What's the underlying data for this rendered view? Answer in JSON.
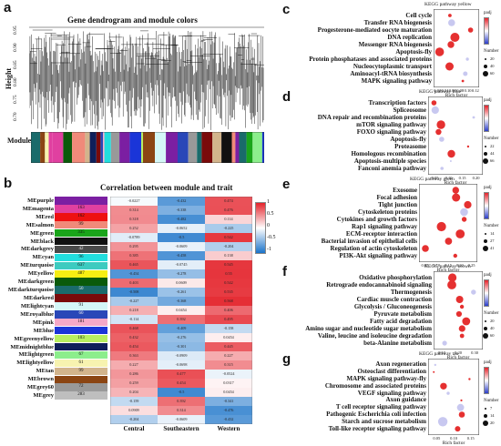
{
  "panels": {
    "a": {
      "letter": "a",
      "title": "Gene dendrogram and module colors",
      "ylabel": "Height",
      "module_colors_label": "Module colors",
      "yticks": [
        "0.95",
        "0.90",
        "0.85",
        "0.80",
        "0.75",
        "0.70"
      ]
    },
    "b": {
      "letter": "b",
      "title": "Correlation between module and trait",
      "columns": [
        "Central",
        "Southeastern",
        "Western"
      ],
      "legend_ticks": [
        "1",
        "0.5",
        "0",
        "-0.5",
        "-1"
      ]
    },
    "c": {
      "letter": "c",
      "title": "KEGG pathway yellow",
      "xlabel": "Rich factor",
      "terms": [
        "Cell cycle",
        "Transfer RNA biogenesis",
        "Progesterone-mediated oocyte maturation",
        "DNA replication",
        "Messenger RNA biogenesis",
        "Apoptosis-fly",
        "Protein phosphatases and associated proteins",
        "Nucleocytoplasmic transport",
        "Aminoacyl-tRNA biosynthesis",
        "MAPK signaling pathway"
      ],
      "xticks": [
        "0.02",
        "0.04",
        "0.06",
        "0.08",
        "0.10",
        "0.12"
      ]
    },
    "d": {
      "letter": "d",
      "title": "KEGG pathway blue",
      "xlabel": "Rich factor",
      "terms": [
        "Transcription factors",
        "Spliceosome",
        "DNA repair and recombination proteins",
        "mTOR signaling pathway",
        "FOXO signaling pathway",
        "Apoptosis-fly",
        "Proteasome",
        "Homologous recombination",
        "Apoptosis-multiple species",
        "Fanconi anemia pathway"
      ],
      "xticks": [
        "0.05",
        "0.10",
        "0.15",
        "0.20"
      ]
    },
    "e": {
      "letter": "e",
      "title": "KEGG pathway green",
      "xlabel": "Rich factor",
      "terms": [
        "Exosome",
        "Focal adhesion",
        "Tight junction",
        "Cytoskeleton proteins",
        "Cytokines and growth factors",
        "Rap1 signaling pathway",
        "ECM-receptor interaction",
        "Bacterial invasion of epithelial cells",
        "Regulation of actin cytoskeleton",
        "PI3K-Akt signaling pathway"
      ],
      "xticks": [
        "0.05",
        "0.10",
        "0.15",
        "0.20",
        "0.25"
      ]
    },
    "f": {
      "letter": "f",
      "title": "KEGG pathway brown",
      "xlabel": "Rich factor",
      "terms": [
        "Oxidative phosphorylation",
        "Retrograde endocannabinoid signaling",
        "Thermogenesis",
        "Cardiac muscle contraction",
        "Glycolysis / Gluconeogenesis",
        "Pyruvate metabolism",
        "Fatty acid degradation",
        "Amino sugar and nucleotide sugar metabolism",
        "Valine, leucine and isoleucine degradation",
        "beta-Alanine metabolism"
      ],
      "xticks": [
        "0.10",
        "0.20",
        "0.30"
      ]
    },
    "g": {
      "letter": "g",
      "title": "KEGG pathway tan",
      "xlabel": "Rich factor",
      "terms": [
        "Axon regeneration",
        "Osteoclast differentiation",
        "MAPK signaling pathway-fly",
        "Chromosome and associated proteins",
        "VEGF signaling pathway",
        "Axon guidance",
        "T cell receptor signaling pathway",
        "Pathogenic Escherichia coli infection",
        "Starch and sucrose metabolism",
        "Toll-like receptor signaling pathway"
      ],
      "xticks": [
        "0.05",
        "0.10",
        "0.15"
      ]
    }
  },
  "kegg_legend": {
    "padj_label": "padj",
    "number_label": "Number",
    "c": [
      "20",
      "40",
      "60"
    ],
    "d": [
      "22",
      "44",
      "66"
    ],
    "e": [
      "14",
      "27",
      "41"
    ],
    "f": [
      "20",
      "40",
      "60"
    ],
    "g": [
      "7",
      "14",
      "20"
    ]
  },
  "modules": [
    {
      "name": "MEpurple",
      "color": "#7b1fa2",
      "count": ""
    },
    {
      "name": "MEmagenta",
      "color": "#e040a0",
      "count": "163"
    },
    {
      "name": "MEred",
      "color": "#ee1111",
      "count": "162"
    },
    {
      "name": "MEsalmon",
      "color": "#f08a7a",
      "count": "99"
    },
    {
      "name": "MEgreen",
      "color": "#1aa51a",
      "count": "335"
    },
    {
      "name": "MEblack",
      "color": "#111111",
      "count": ""
    },
    {
      "name": "MEdarkgrey",
      "color": "#4a4a4a",
      "count": "42"
    },
    {
      "name": "MEcyan",
      "color": "#22dddd",
      "count": "96"
    },
    {
      "name": "MEturquoise",
      "color": "#3ccbc0",
      "count": "637"
    },
    {
      "name": "MEyellow",
      "color": "#f7ee13",
      "count": "487"
    },
    {
      "name": "MEdarkgreen",
      "color": "#0a5a0a",
      "count": ""
    },
    {
      "name": "MEdarkturquoise",
      "color": "#1a6b6b",
      "count": "50"
    },
    {
      "name": "MEdarkred",
      "color": "#7a0a0a",
      "count": ""
    },
    {
      "name": "MElightcyan",
      "color": "#d4f7f7",
      "count": "91"
    },
    {
      "name": "MEroyalblue",
      "color": "#2947b8",
      "count": "60"
    },
    {
      "name": "MEpink",
      "color": "#f5a8c8",
      "count": "181"
    },
    {
      "name": "MEblue",
      "color": "#1a35d8",
      "count": ""
    },
    {
      "name": "MEgreenyellow",
      "color": "#b8f060",
      "count": "103"
    },
    {
      "name": "MEmidnightblue",
      "color": "#0f1f5a",
      "count": ""
    },
    {
      "name": "MElightgreen",
      "color": "#8cee8c",
      "count": "67"
    },
    {
      "name": "MElightyellow",
      "color": "#f7f3b0",
      "count": "61"
    },
    {
      "name": "MEtan",
      "color": "#d2b48c",
      "count": "99"
    },
    {
      "name": "MEbrown",
      "color": "#8b4513",
      "count": ""
    },
    {
      "name": "MEgrey60",
      "color": "#999999",
      "count": "72"
    },
    {
      "name": "MEgrey",
      "color": "#bebebe",
      "count": "283"
    }
  ],
  "heatmap": [
    [
      -0.0227,
      -0.432,
      0.474
    ],
    [
      0.314,
      -0.338,
      0.476
    ],
    [
      0.318,
      -0.482,
      0.114
    ],
    [
      0.252,
      -0.0652,
      -0.225
    ],
    [
      -0.0789,
      -0.5,
      0.542
    ],
    [
      0.295,
      -0.0609,
      -0.204
    ],
    [
      0.385,
      -0.458,
      0.138
    ],
    [
      0.465,
      -0.0745,
      0.545
    ],
    [
      -0.454,
      -0.278,
      0.55
    ],
    [
      0.403,
      0.0609,
      0.542
    ],
    [
      -0.508,
      -0.261,
      0.535
    ],
    [
      -0.227,
      -0.368,
      0.568
    ],
    [
      0.218,
      0.0454,
      0.406
    ],
    [
      -0.114,
      0.392,
      0.495
    ],
    [
      0.468,
      -0.409,
      -0.158
    ],
    [
      0.432,
      -0.276,
      0.0454
    ],
    [
      0.454,
      -0.301,
      0.445
    ],
    [
      0.363,
      -0.0909,
      0.227
    ],
    [
      0.227,
      -0.0698,
      0.315
    ],
    [
      0.286,
      0.477,
      -0.0524
    ],
    [
      0.259,
      0.454,
      0.0317
    ],
    [
      0.204,
      -0.5,
      0.0454
    ],
    [
      -0.159,
      0.392,
      -0.341
    ],
    [
      0.0909,
      0.314,
      -0.476
    ],
    [
      -0.204,
      -0.0609,
      -0.432
    ]
  ]
}
